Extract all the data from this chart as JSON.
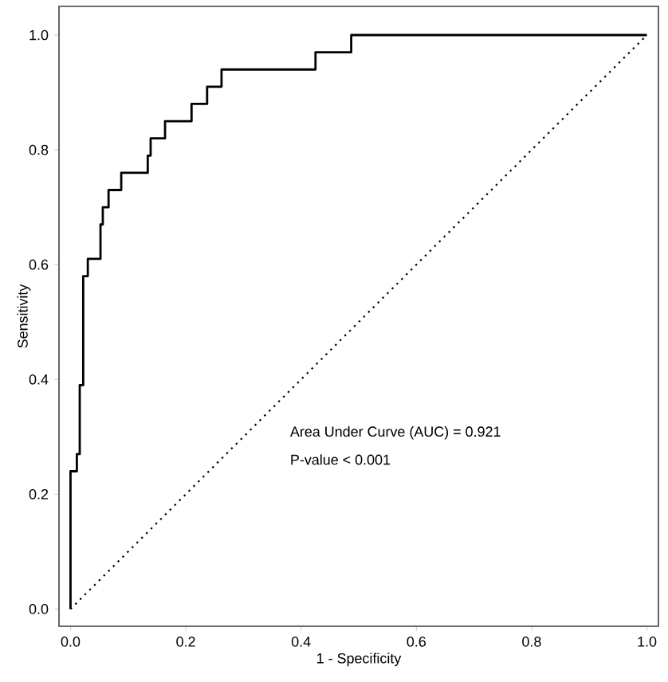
{
  "chart_data": {
    "type": "step",
    "xlabel": "1 - Specificity",
    "ylabel": "Sensitivity",
    "series": [
      {
        "color": "#000000",
        "line_style": "solid",
        "x": [
          0,
          0,
          0.011,
          0.016,
          0.022,
          0.03,
          0.052,
          0.056,
          0.066,
          0.088,
          0.134,
          0.139,
          0.164,
          0.21,
          0.237,
          0.262,
          0.425,
          0.487,
          1.0
        ],
        "values": [
          0,
          0.24,
          0.27,
          0.39,
          0.58,
          0.61,
          0.67,
          0.7,
          0.73,
          0.76,
          0.79,
          0.82,
          0.85,
          0.88,
          0.91,
          0.94,
          0.97,
          1.0,
          1.0
        ]
      },
      {
        "type": "line",
        "color": "#000000",
        "line_style": "dotted",
        "x": [
          0,
          1
        ],
        "values": [
          0,
          1
        ]
      }
    ],
    "xlim": [
      -0.02,
      1.02
    ],
    "ylim": [
      -0.03,
      1.05
    ],
    "xticks": [
      {
        "value": 0,
        "label": "0.0"
      },
      0.2,
      0.4,
      0.6,
      0.8,
      {
        "value": 1,
        "label": "1.0"
      }
    ],
    "yticks": [
      {
        "value": 0,
        "label": "0.0"
      },
      0.2,
      0.4,
      0.6,
      0.8,
      {
        "value": 1,
        "label": "1.0"
      }
    ],
    "grid": false,
    "annotations": [
      "Area Under Curve (AUC) = 0.921",
      "P-value < 0.001"
    ]
  }
}
